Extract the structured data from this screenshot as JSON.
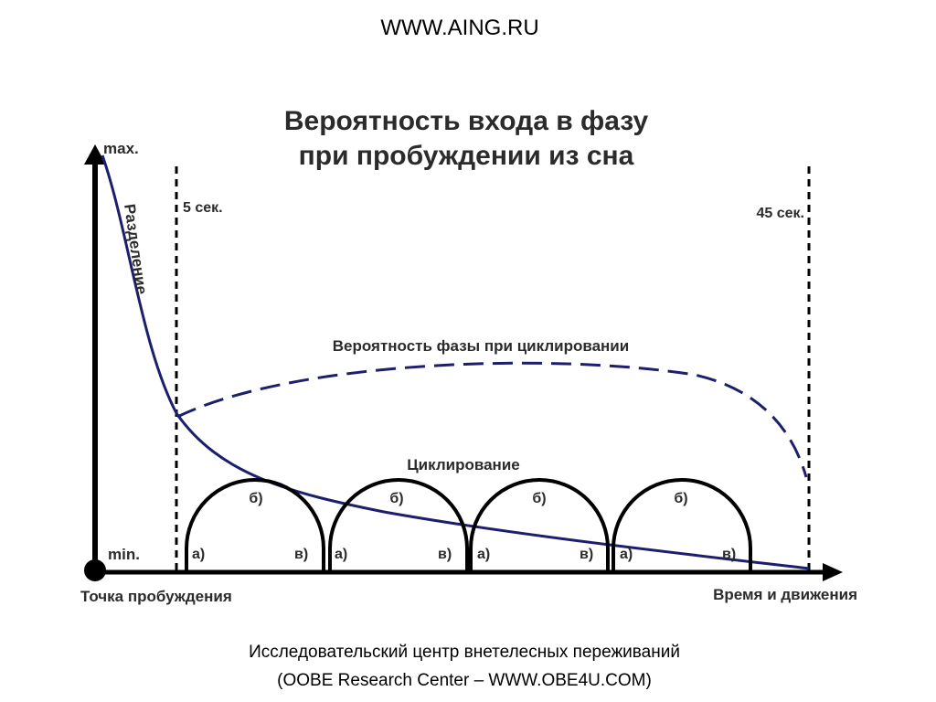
{
  "header": {
    "site": "WWW.AING.RU"
  },
  "diagram": {
    "title_line1": "Вероятность входа в фазу",
    "title_line2": "при пробуждении из сна",
    "y_axis": {
      "max_label": "max.",
      "min_label": "min."
    },
    "x_axis": {
      "start_label": "Точка пробуждения",
      "end_label": "Время и движения"
    },
    "markers": {
      "start_label": "5 сек.",
      "end_label": "45 сек."
    },
    "separation_label": "Разделение",
    "phase_probability_label": "Вероятность фазы при циклировании",
    "cycling_label": "Циклирование",
    "cycle_segment_labels": {
      "a": "а)",
      "b": "б)",
      "v": "в)"
    },
    "cycles_count": 4,
    "colors": {
      "curve": "#1c1f6b",
      "axis": "#000000",
      "arch": "#000000"
    }
  },
  "footer": {
    "line1": "Исследовательский центр внетелесных переживаний",
    "line2": "(OOBE Research Center – WWW.OBE4U.COM)"
  }
}
